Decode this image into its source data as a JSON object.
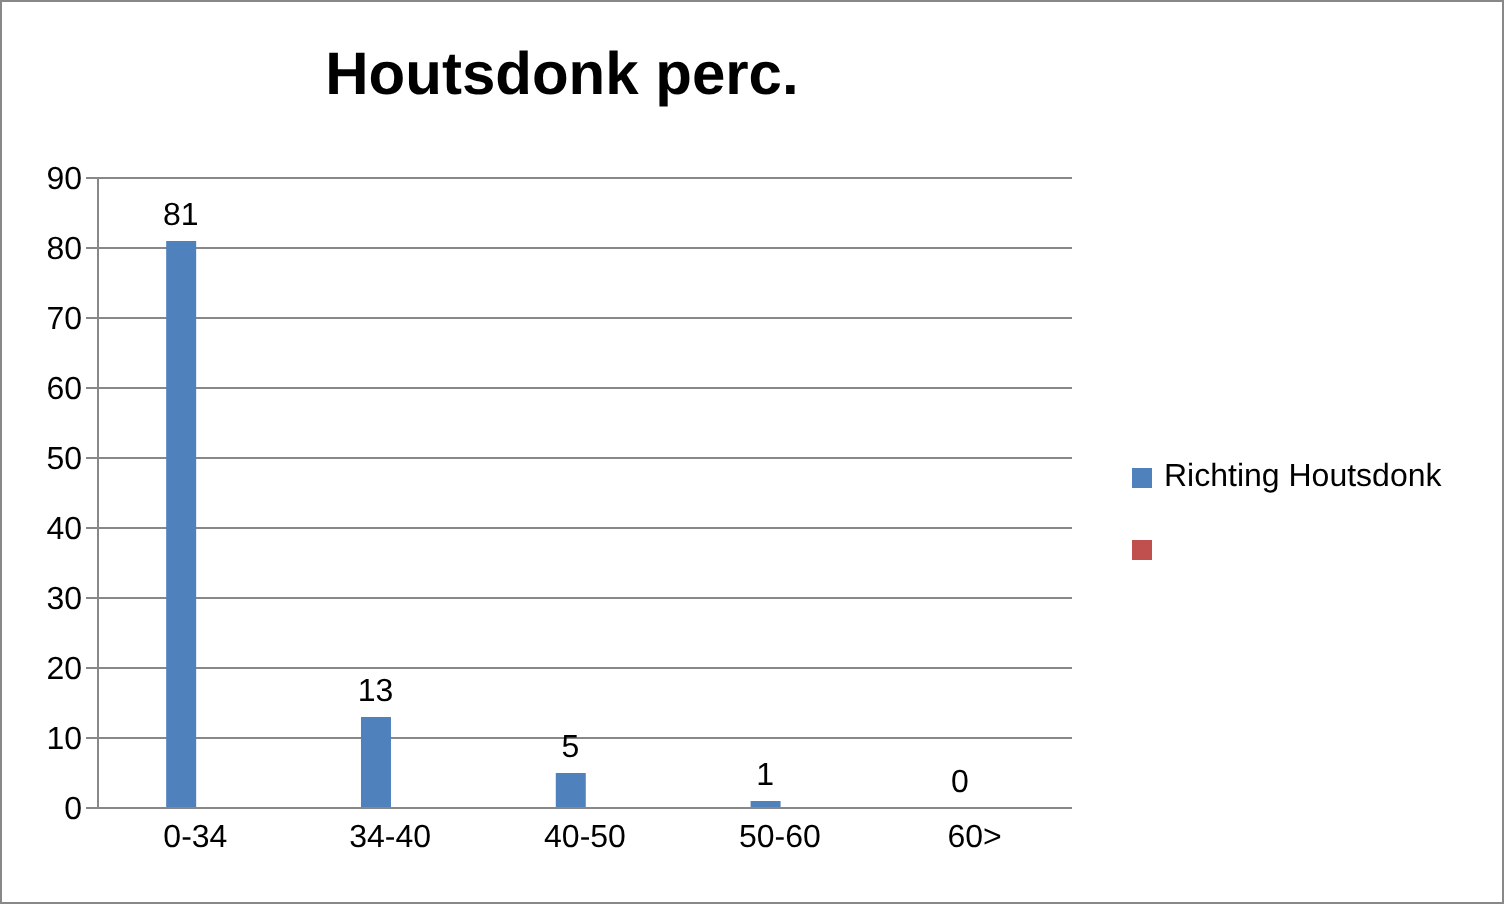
{
  "chart_data": {
    "type": "bar",
    "title": "Houtsdonk perc.",
    "categories": [
      "0-34",
      "34-40",
      "40-50",
      "50-60",
      "60>"
    ],
    "series": [
      {
        "name": "Richting Houtsdonk",
        "color": "#4f81bd",
        "values": [
          81,
          13,
          5,
          1,
          0
        ]
      },
      {
        "color": "#c0504d",
        "values": [
          null,
          null,
          null,
          null,
          null
        ]
      }
    ],
    "ylim": [
      0,
      90
    ],
    "yticks": [
      0,
      10,
      20,
      30,
      40,
      50,
      60,
      70,
      80,
      90
    ],
    "grid": "y",
    "legend": "right",
    "data_labels": true
  }
}
